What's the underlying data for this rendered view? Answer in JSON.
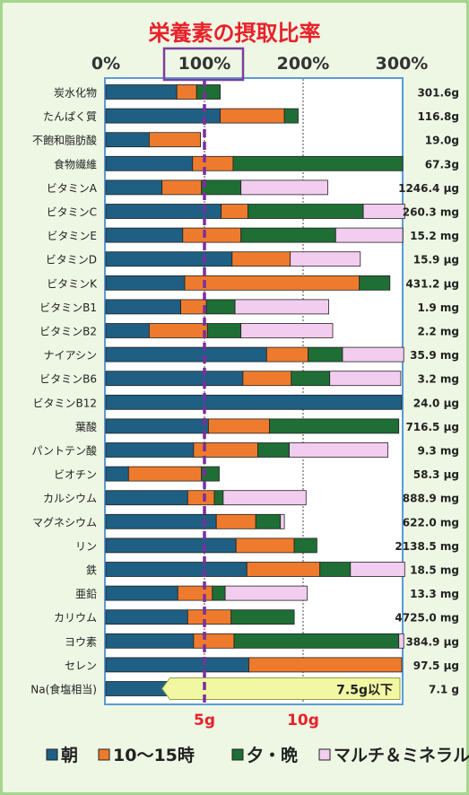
{
  "chart_data": {
    "type": "bar",
    "stacked": true,
    "orientation": "horizontal",
    "title": "栄養素の摂取比率",
    "x_ticks": [
      "0%",
      "100%",
      "200%",
      "300%"
    ],
    "xlim": [
      0,
      300
    ],
    "highlight_tick": "100%",
    "legend_position": "bottom",
    "categories": [
      "炭水化物",
      "たんぱく質",
      "不飽和脂肪酸",
      "食物繊維",
      "ビタミンA",
      "ビタミンC",
      "ビタミンE",
      "ビタミンD",
      "ビタミンK",
      "ビタミンB1",
      "ビタミンB2",
      "ナイアシン",
      "ビタミンB6",
      "ビタミンB12",
      "葉酸",
      "パントテン酸",
      "ビオチン",
      "カルシウム",
      "マグネシウム",
      "リン",
      "鉄",
      "亜鉛",
      "カリウム",
      "ヨウ素",
      "セレン",
      "Na(食塩相当)"
    ],
    "amounts": [
      "301.6g",
      "116.8g",
      "19.0g",
      "67.3g",
      "1246.4 μg",
      "260.3 mg",
      "15.2 mg",
      "15.9 μg",
      "431.2 μg",
      "1.9 mg",
      "2.2 mg",
      "35.9 mg",
      "3.2 mg",
      "24.0 μg",
      "716.5 μg",
      "9.3 mg",
      "58.3 μg",
      "888.9 mg",
      "622.0 mg",
      "2138.5 mg",
      "18.5 mg",
      "13.3 mg",
      "4725.0 mg",
      "384.9 μg",
      "97.5 μg",
      "7.1 g"
    ],
    "series": [
      {
        "name": "朝",
        "color": "#1f5f83",
        "values": [
          72,
          116,
          44,
          88,
          57,
          117,
          78,
          128,
          80,
          76,
          44,
          163,
          139,
          300,
          104,
          89,
          23,
          83,
          112,
          132,
          143,
          73,
          83,
          89,
          145,
          109
        ]
      },
      {
        "name": "10〜15時",
        "color": "#ee7b2d",
        "values": [
          20,
          65,
          52,
          41,
          40,
          27,
          59,
          59,
          177,
          26,
          59,
          42,
          49,
          0,
          62,
          65,
          74,
          27,
          40,
          59,
          74,
          35,
          44,
          41,
          155,
          29
        ]
      },
      {
        "name": "夕・晩",
        "color": "#1e6e35",
        "values": [
          24,
          14,
          0,
          172,
          40,
          117,
          96,
          0,
          31,
          29,
          34,
          35,
          39,
          0,
          131,
          32,
          18,
          9,
          25,
          23,
          31,
          13,
          64,
          167,
          0,
          3
        ]
      },
      {
        "name": "マルチ＆ミネラル",
        "color": "#f3cdf0",
        "values": [
          0,
          0,
          0,
          0,
          88,
          42,
          68,
          71,
          0,
          95,
          93,
          62,
          72,
          0,
          0,
          100,
          0,
          84,
          4,
          0,
          55,
          83,
          0,
          5,
          0,
          0
        ]
      }
    ],
    "reference_line": {
      "value": 100,
      "style": "dashed-purple"
    },
    "bottom_labels": [
      "5g",
      "10g"
    ],
    "na_note": "7.5g以下"
  }
}
